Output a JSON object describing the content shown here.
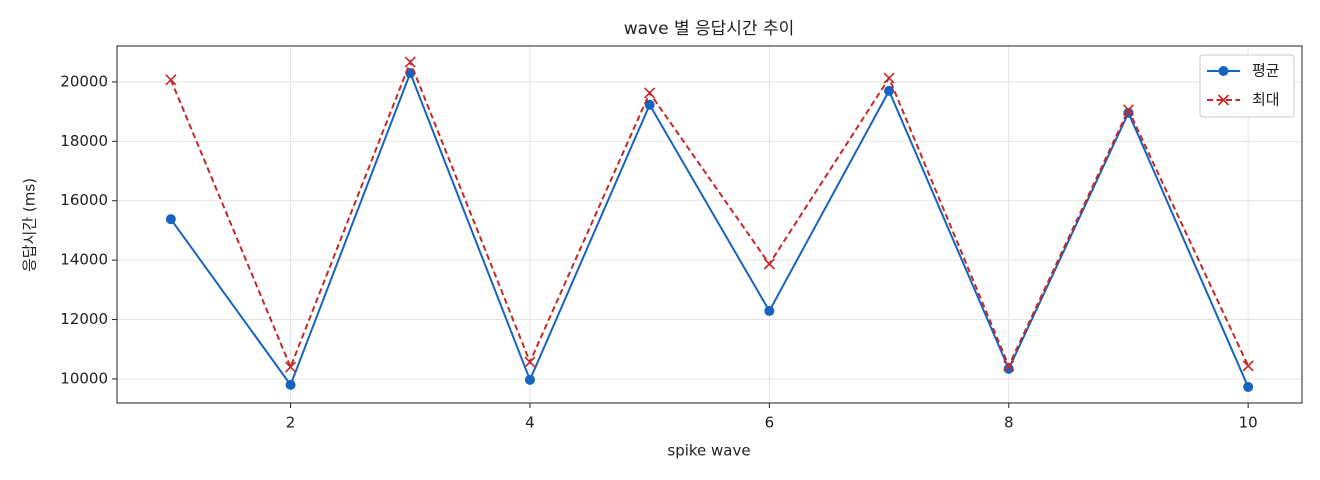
{
  "chart_data": {
    "type": "line",
    "title": "wave 별 응답시간 추이",
    "xlabel": "spike wave",
    "ylabel": "응답시간 (ms)",
    "x": [
      1,
      2,
      3,
      4,
      5,
      6,
      7,
      8,
      9,
      10
    ],
    "series": [
      {
        "name": "평균",
        "color": "#1565c0",
        "marker": "o",
        "linestyle": "solid",
        "values": [
          15380,
          9800,
          20300,
          9970,
          19230,
          12290,
          19700,
          10340,
          18960,
          9730
        ]
      },
      {
        "name": "최대",
        "color": "#c62828",
        "marker": "x",
        "linestyle": "dashed",
        "values": [
          20070,
          10400,
          20670,
          10570,
          19630,
          13870,
          20130,
          10440,
          19060,
          10440
        ]
      }
    ],
    "xlim": [
      0.55,
      10.45
    ],
    "ylim": [
      9190,
      21210
    ],
    "xticks": [
      2,
      4,
      6,
      8,
      10
    ],
    "yticks": [
      10000,
      12000,
      14000,
      16000,
      18000,
      20000
    ],
    "grid": true,
    "legend": "upper right"
  }
}
